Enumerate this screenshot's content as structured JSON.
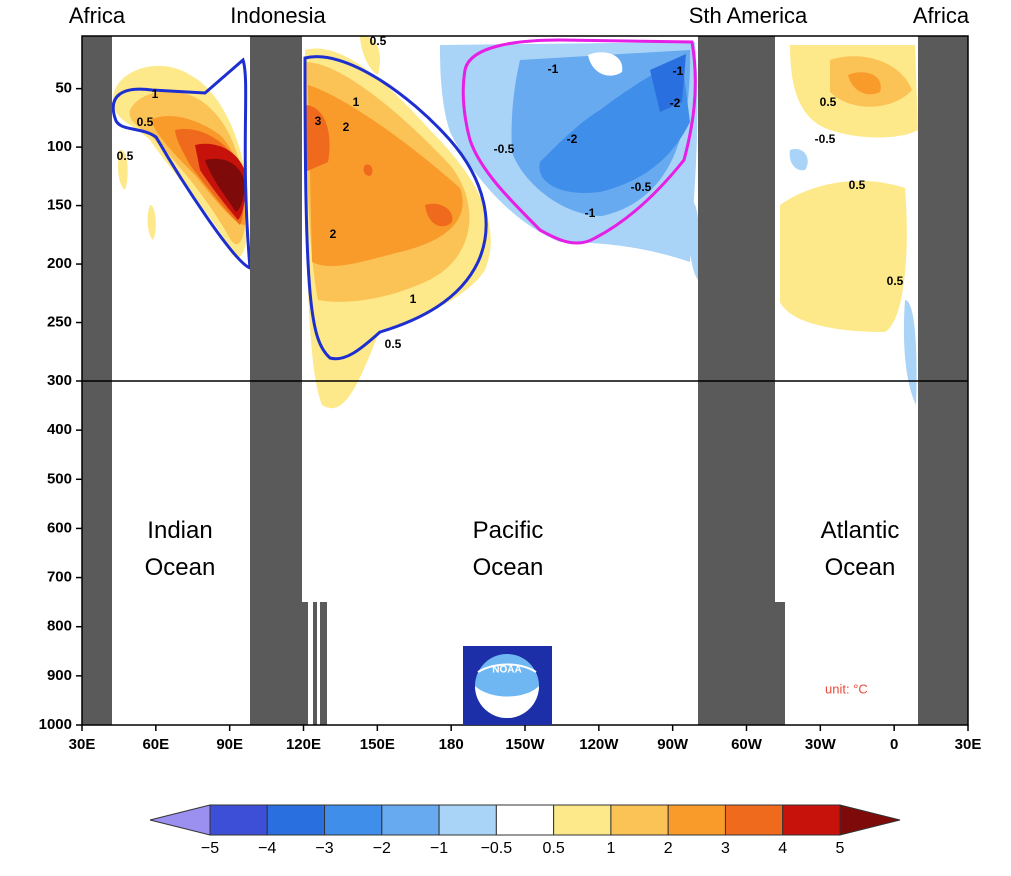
{
  "chart_data": {
    "type": "contour",
    "xlim": [
      30,
      390
    ],
    "xticks": [
      {
        "value": 30,
        "label": "30E"
      },
      {
        "value": 60,
        "label": "60E"
      },
      {
        "value": 90,
        "label": "90E"
      },
      {
        "value": 120,
        "label": "120E"
      },
      {
        "value": 150,
        "label": "150E"
      },
      180,
      {
        "value": 210,
        "label": "150W"
      },
      {
        "value": 240,
        "label": "120W"
      },
      {
        "value": 270,
        "label": "90W"
      },
      {
        "value": 300,
        "label": "60W"
      },
      {
        "value": 330,
        "label": "30W"
      },
      {
        "value": 360,
        "label": "0"
      },
      {
        "value": 390,
        "label": "30E"
      }
    ],
    "ylim": [
      5,
      1000
    ],
    "yreverse": true,
    "ybreak": 300,
    "yticks": [
      50,
      100,
      150,
      200,
      250,
      300,
      400,
      500,
      600,
      700,
      800,
      900,
      1000
    ],
    "region_labels": [
      "Africa",
      "Indonesia",
      "Sth America",
      "Africa"
    ],
    "ocean_labels": [
      "Indian Ocean",
      "Pacific Ocean",
      "Atlantic Ocean"
    ],
    "contour_labels": [
      0.5,
      1,
      0.5,
      0.5,
      1,
      3,
      2,
      2,
      1,
      0.5,
      -1,
      -1,
      -2,
      -2,
      -0.5,
      -0.5,
      -1,
      0.5,
      -0.5,
      0.5,
      0.5
    ],
    "unit_label": "unit: °C",
    "logo_text": "NOAA",
    "colorbar": {
      "levels": [
        {
          "value": -5,
          "label": "−5"
        },
        {
          "value": -4,
          "label": "−4"
        },
        {
          "value": -3,
          "label": "−3"
        },
        {
          "value": -2,
          "label": "−2"
        },
        {
          "value": -1,
          "label": "−1"
        },
        {
          "value": -0.5,
          "label": "−0.5"
        },
        0.5,
        1,
        2,
        3,
        4,
        5
      ],
      "colors": [
        "#9b90ef",
        "#3d4fd6",
        "#2a6fe0",
        "#3f8ee9",
        "#68aaf0",
        "#a9d3f7",
        "#ffffff",
        "#fde98a",
        "#fbc256",
        "#f99b2a",
        "#ef6a1c",
        "#c7120c",
        "#7e0a0a"
      ]
    }
  }
}
